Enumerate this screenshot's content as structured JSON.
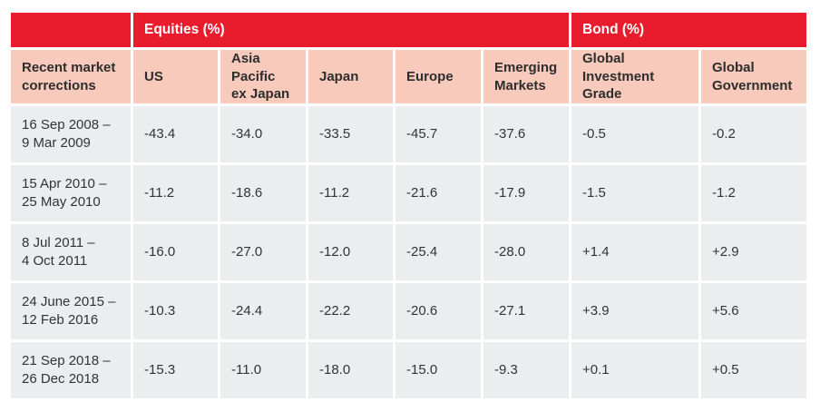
{
  "colors": {
    "header_red": "#e91c2d",
    "header_pink": "#f8cabb",
    "row_gray": "#ebedef"
  },
  "table": {
    "group_headers": {
      "equities": "Equities (%)",
      "bond": "Bond (%)"
    },
    "row_label_header": "Recent market\ncorrections",
    "columns": [
      "US",
      "Asia Pacific\nex Japan",
      "Japan",
      "Europe",
      "Emerging\nMarkets",
      "Global Investment\nGrade",
      "Global\nGovernment"
    ],
    "rows": [
      {
        "period": "16 Sep 2008 –\n9 Mar 2009",
        "values": [
          "-43.4",
          "-34.0",
          "-33.5",
          "-45.7",
          "-37.6",
          "-0.5",
          "-0.2"
        ]
      },
      {
        "period": "15 Apr 2010 –\n25 May 2010",
        "values": [
          "-11.2",
          "-18.6",
          "-11.2",
          "-21.6",
          "-17.9",
          "-1.5",
          "-1.2"
        ]
      },
      {
        "period": "8 Jul 2011 –\n4 Oct 2011",
        "values": [
          "-16.0",
          "-27.0",
          "-12.0",
          "-25.4",
          "-28.0",
          "+1.4",
          "+2.9"
        ]
      },
      {
        "period": "24 June 2015 –\n12 Feb 2016",
        "values": [
          "-10.3",
          "-24.4",
          "-22.2",
          "-20.6",
          "-27.1",
          "+3.9",
          "+5.6"
        ]
      },
      {
        "period": "21 Sep 2018 –\n26 Dec 2018",
        "values": [
          "-15.3",
          "-11.0",
          "-18.0",
          "-15.0",
          "-9.3",
          "+0.1",
          "+0.5"
        ]
      }
    ]
  }
}
